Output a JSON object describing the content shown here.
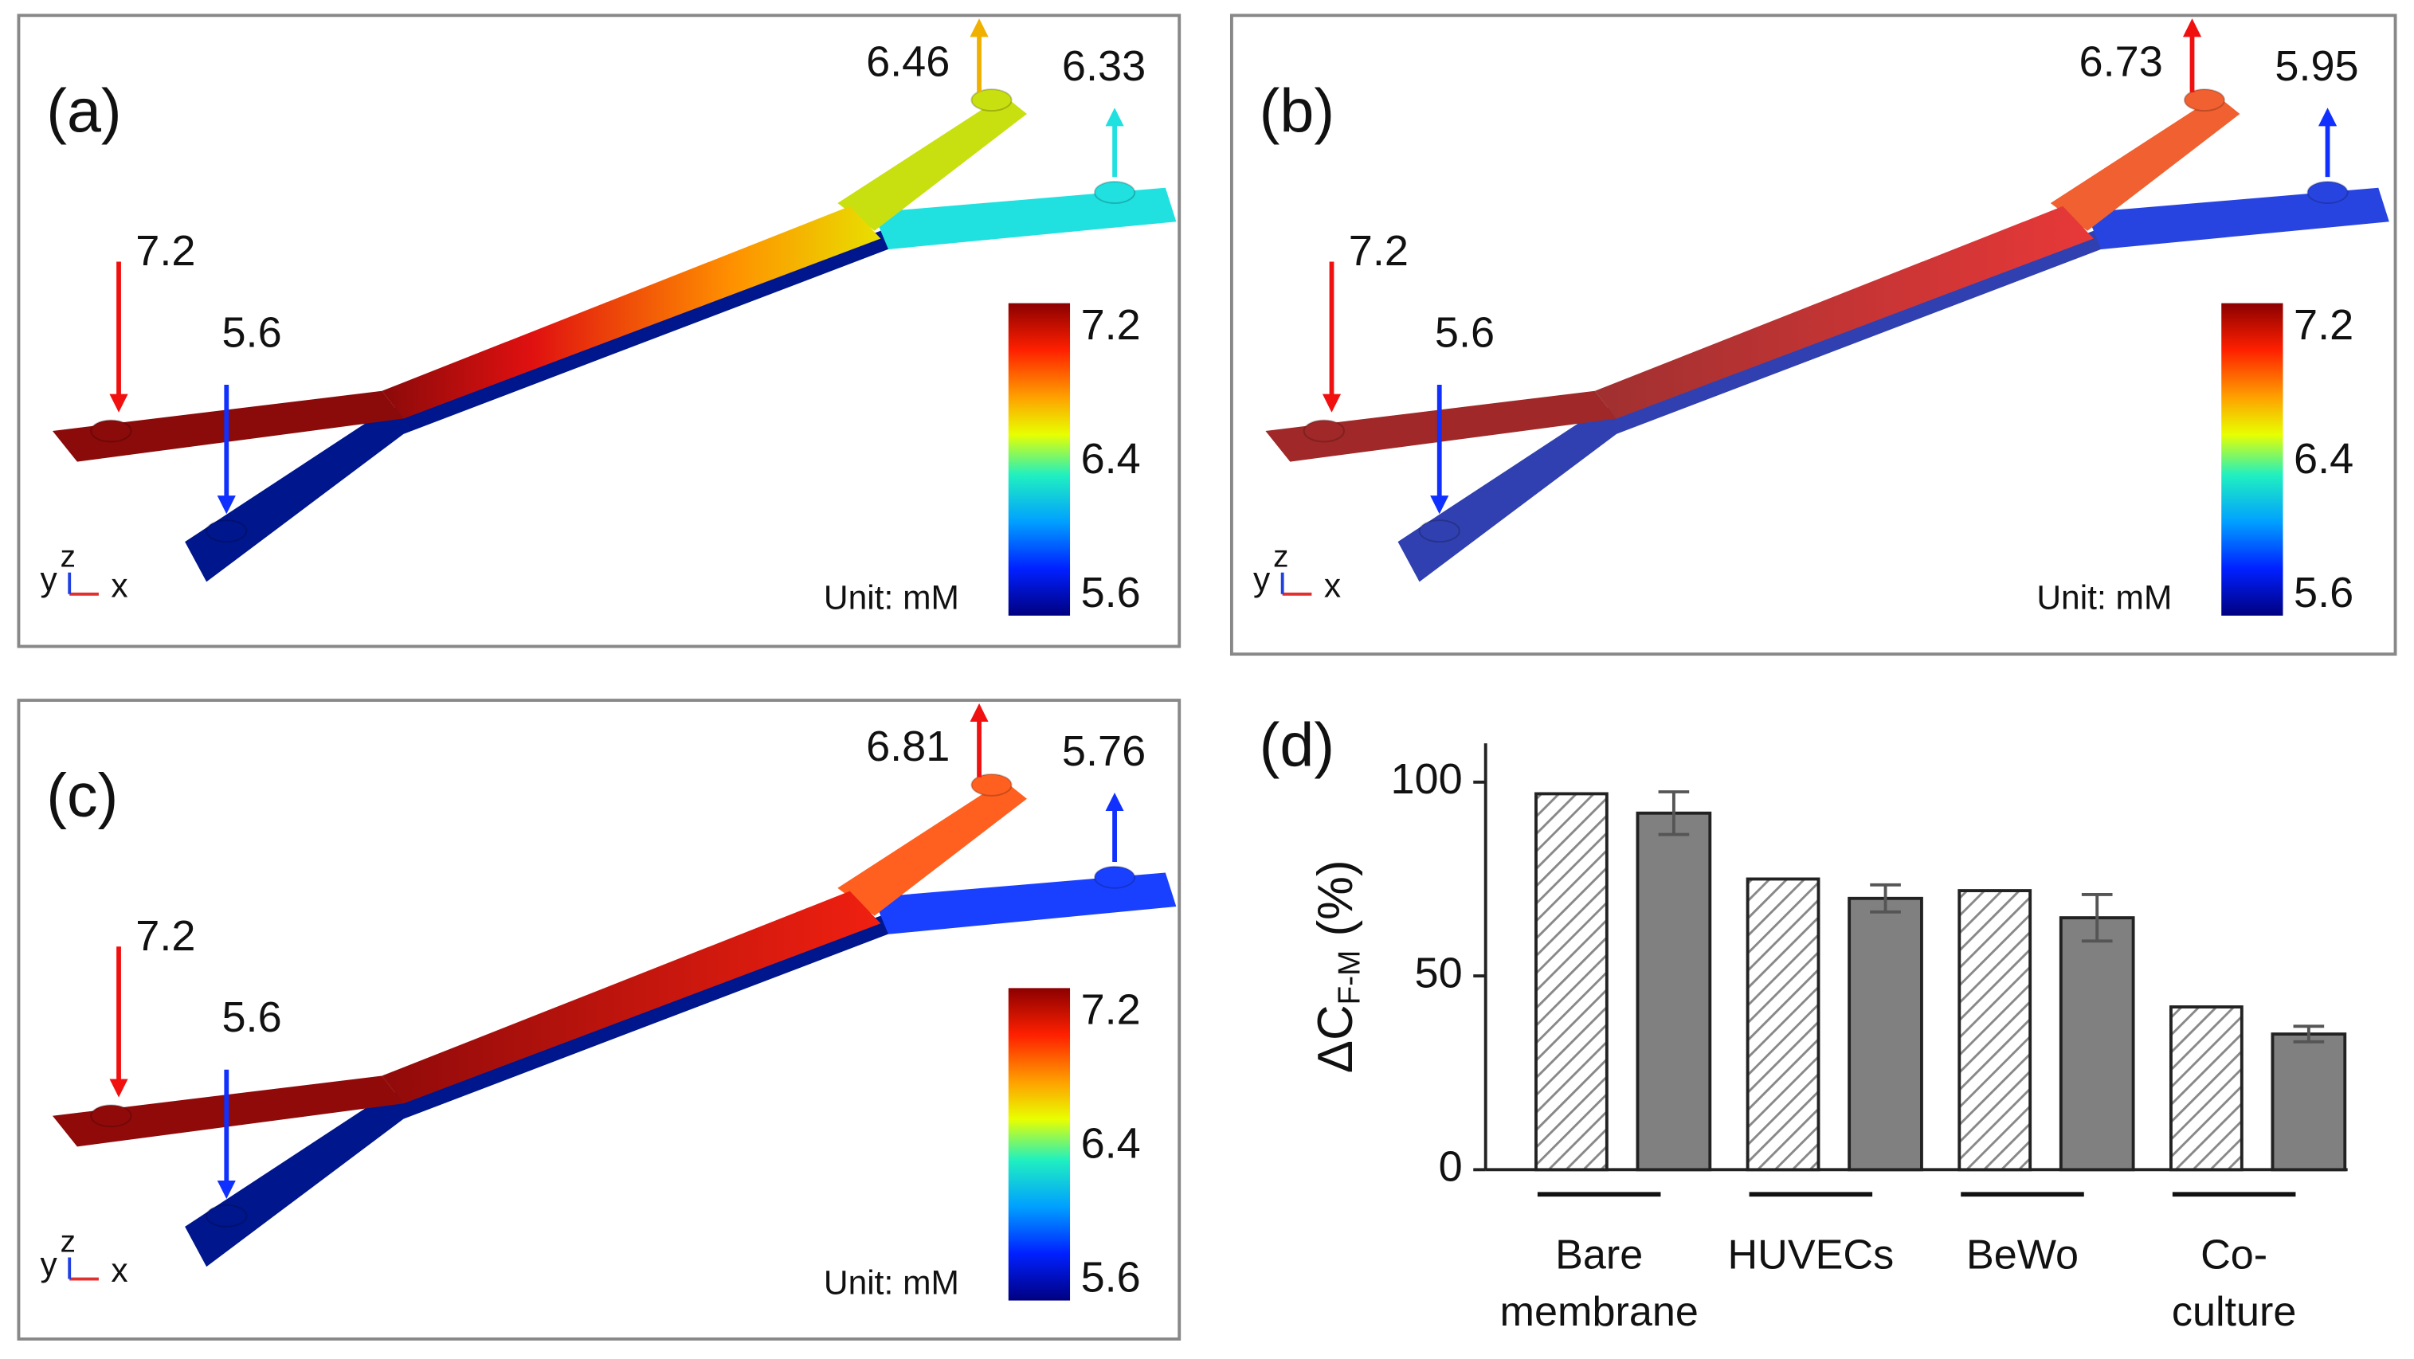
{
  "panels": [
    {
      "label": "(a)",
      "inlet_high": "7.2",
      "inlet_low": "5.6",
      "outlet_top": "6.46",
      "outlet_side": "6.33",
      "colorbar_ticks": [
        "7.2",
        "6.4",
        "5.6"
      ],
      "unit": "Unit: mM",
      "axes": [
        "y",
        "z",
        "x"
      ]
    },
    {
      "label": "(b)",
      "inlet_high": "7.2",
      "inlet_low": "5.6",
      "outlet_top": "6.73",
      "outlet_side": "5.95",
      "colorbar_ticks": [
        "7.2",
        "6.4",
        "5.6"
      ],
      "unit": "Unit: mM",
      "axes": [
        "y",
        "z",
        "x"
      ]
    },
    {
      "label": "(c)",
      "inlet_high": "7.2",
      "inlet_low": "5.6",
      "outlet_top": "6.81",
      "outlet_side": "5.76",
      "colorbar_ticks": [
        "7.2",
        "6.4",
        "5.6"
      ],
      "unit": "Unit: mM",
      "axes": [
        "y",
        "z",
        "x"
      ]
    }
  ],
  "chart_data": {
    "type": "bar",
    "label": "(d)",
    "ylabel": {
      "main": "ΔC",
      "sub": "F-M",
      "unit": " (%)"
    },
    "categories": [
      [
        "Bare",
        "membrane"
      ],
      [
        "HUVECs"
      ],
      [
        "BeWo"
      ],
      [
        "Co-",
        "culture"
      ]
    ],
    "series": [
      {
        "color": "#ffffff",
        "pattern": "hatch",
        "values": [
          97,
          75,
          72,
          42
        ]
      },
      {
        "color": "#808080",
        "values": [
          92,
          70,
          65,
          35
        ],
        "errors": [
          5.5,
          3.5,
          6,
          2
        ]
      }
    ],
    "ylim": [
      0,
      110
    ],
    "yticks": [
      0,
      50,
      100
    ]
  }
}
